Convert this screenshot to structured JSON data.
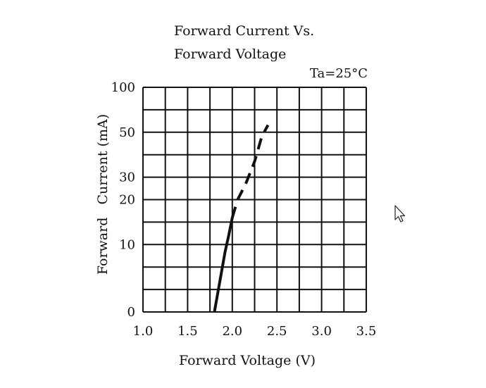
{
  "chart_data": {
    "type": "line",
    "title_lines": [
      "Forward Current Vs.",
      "Forward Voltage"
    ],
    "annotation": "Ta=25°C",
    "xlabel": "Forward Voltage (V)",
    "ylabel": "Forward   Current (mA)",
    "xlim": [
      1.0,
      3.5
    ],
    "x_ticks": [
      "1.0",
      "1.5",
      "2.0",
      "2.5",
      "3.0",
      "3.5"
    ],
    "y_ticks": [
      {
        "value": 0,
        "label": "0"
      },
      {
        "value": 10,
        "label": "10"
      },
      {
        "value": 20,
        "label": "20"
      },
      {
        "value": 30,
        "label": "30"
      },
      {
        "value": 50,
        "label": "50"
      },
      {
        "value": 100,
        "label": "100"
      }
    ],
    "grid": true,
    "series": [
      {
        "style": "solid",
        "color": "#111111",
        "points": [
          [
            1.8,
            0
          ],
          [
            1.84,
            3
          ],
          [
            1.88,
            6
          ],
          [
            1.92,
            9
          ],
          [
            1.96,
            12
          ],
          [
            2.0,
            16
          ]
        ]
      },
      {
        "style": "dashed",
        "color": "#111111",
        "points": [
          [
            2.0,
            16
          ],
          [
            2.06,
            20
          ],
          [
            2.15,
            27
          ],
          [
            2.25,
            37
          ],
          [
            2.33,
            48
          ],
          [
            2.4,
            58
          ]
        ]
      }
    ]
  },
  "cursor": {
    "icon": "mouse-pointer-icon"
  }
}
